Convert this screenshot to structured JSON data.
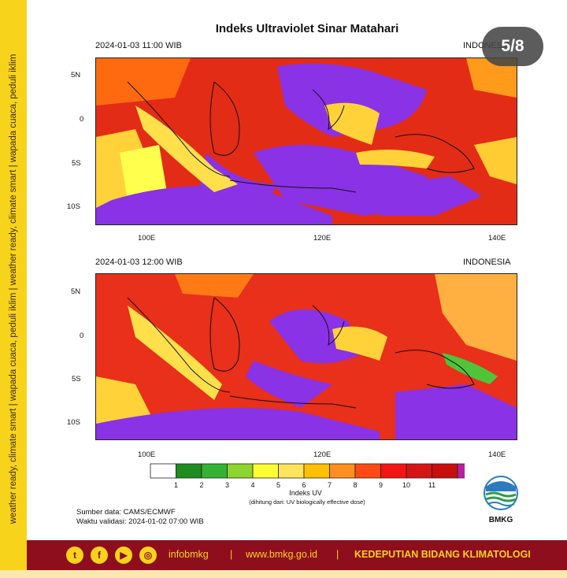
{
  "sidebar": {
    "text": "weather ready, climate smart  |  wapada cuaca, peduli iklim  |  weather ready, climate smart  |  wapada cuaca, peduli iklim"
  },
  "counter": "5/8",
  "title": "Indeks Ultraviolet Sinar Matahari",
  "maps": [
    {
      "datetime": "2024-01-03  11:00 WIB",
      "region": "INDONESIA"
    },
    {
      "datetime": "2024-01-03  12:00 WIB",
      "region": "INDONESIA"
    }
  ],
  "axes": {
    "lat_ticks": [
      "5N",
      "0",
      "5S",
      "10S"
    ],
    "lon_ticks": [
      "100E",
      "120E",
      "140E"
    ]
  },
  "legend": {
    "levels": [
      "1",
      "2",
      "3",
      "4",
      "5",
      "6",
      "7",
      "8",
      "9",
      "10",
      "11"
    ],
    "colors": [
      "#ffffff",
      "#1e8c1e",
      "#34b234",
      "#8ed42e",
      "#ffff33",
      "#ffe45c",
      "#ffc000",
      "#ff8f1f",
      "#ff4a14",
      "#f51414",
      "#d71414",
      "#c90e0e",
      "#b7209e"
    ],
    "title": "Indeks UV",
    "note": "(dihitung dari: UV biologically effective dose)"
  },
  "source": "Sumber data: CAMS/ECMWF",
  "validity": "Waktu validasi: 2024-01-02 07:00 WIB",
  "logo_text": "BMKG",
  "footer": {
    "icons": [
      "twitter-icon",
      "facebook-icon",
      "youtube-icon",
      "instagram-icon"
    ],
    "handle": "infobmkg",
    "sep": "|",
    "website": "www.bmkg.go.id",
    "department": "KEDEPUTIAN BIDANG KLIMATOLOGI"
  }
}
